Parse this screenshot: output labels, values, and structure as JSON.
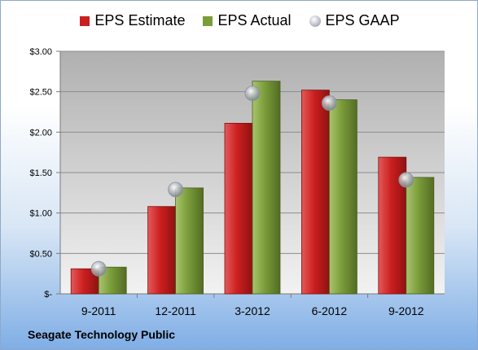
{
  "legend": {
    "estimate": "EPS Estimate",
    "actual": "EPS Actual",
    "gaap": "EPS GAAP"
  },
  "company": "Seagate Technology Public",
  "colors": {
    "estimate": "#cc1f1f",
    "actual": "#7a9c39",
    "gaap": "#b8bcc3",
    "plot_bg_top": "#b0b0b0",
    "plot_bg_bottom": "#f2f2f2"
  },
  "chart_data": {
    "type": "bar",
    "categories": [
      "9-2011",
      "12-2011",
      "3-2012",
      "6-2012",
      "9-2012"
    ],
    "series": [
      {
        "name": "EPS Estimate",
        "values": [
          0.31,
          1.08,
          2.11,
          2.52,
          1.69
        ]
      },
      {
        "name": "EPS Actual",
        "values": [
          0.33,
          1.31,
          2.63,
          2.4,
          1.44
        ]
      },
      {
        "name": "EPS GAAP",
        "values": [
          0.31,
          1.29,
          2.48,
          2.36,
          1.41
        ]
      }
    ],
    "ylim": [
      0,
      3.0
    ],
    "yticks": [
      0,
      0.5,
      1.0,
      1.5,
      2.0,
      2.5,
      3.0
    ],
    "ytick_labels": [
      "$-",
      "$0.50",
      "$1.00",
      "$1.50",
      "$2.00",
      "$2.50",
      "$3.00"
    ],
    "grid": true,
    "legend_position": "top"
  }
}
